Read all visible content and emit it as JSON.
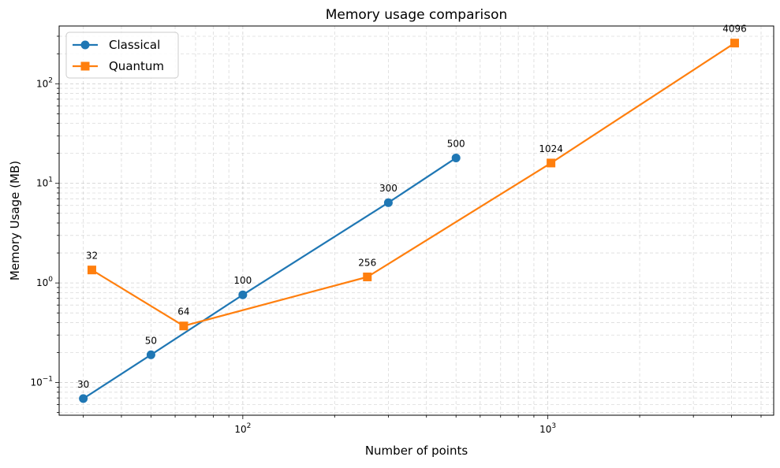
{
  "chart_data": {
    "type": "line",
    "title": "Memory usage comparison",
    "xlabel": "Number of points",
    "ylabel": "Memory Usage (MB)",
    "x_scale": "log",
    "y_scale": "log",
    "xlim": [
      25,
      5500
    ],
    "ylim": [
      0.047,
      380
    ],
    "x_ticks": [
      {
        "value": 100,
        "base": "10",
        "exp": "2"
      },
      {
        "value": 1000,
        "base": "10",
        "exp": "3"
      }
    ],
    "y_ticks": [
      {
        "value": 0.1,
        "base": "10",
        "exp": "−1"
      },
      {
        "value": 1,
        "base": "10",
        "exp": "0"
      },
      {
        "value": 10,
        "base": "10",
        "exp": "1"
      },
      {
        "value": 100,
        "base": "10",
        "exp": "2"
      }
    ],
    "grid": true,
    "legend_position": "top-left",
    "series": [
      {
        "name": "Classical",
        "color": "#1f77b4",
        "marker": "circle",
        "points": [
          {
            "x": 30,
            "y": 0.069,
            "label": "30"
          },
          {
            "x": 50,
            "y": 0.19,
            "label": "50"
          },
          {
            "x": 100,
            "y": 0.76,
            "label": "100"
          },
          {
            "x": 300,
            "y": 6.4,
            "label": "300"
          },
          {
            "x": 500,
            "y": 18.0,
            "label": "500"
          }
        ]
      },
      {
        "name": "Quantum",
        "color": "#ff7f0e",
        "marker": "square",
        "points": [
          {
            "x": 32,
            "y": 1.35,
            "label": "32"
          },
          {
            "x": 64,
            "y": 0.37,
            "label": "64"
          },
          {
            "x": 256,
            "y": 1.15,
            "label": "256"
          },
          {
            "x": 1024,
            "y": 16.0,
            "label": "1024"
          },
          {
            "x": 4096,
            "y": 256.0,
            "label": "4096"
          }
        ]
      }
    ]
  }
}
